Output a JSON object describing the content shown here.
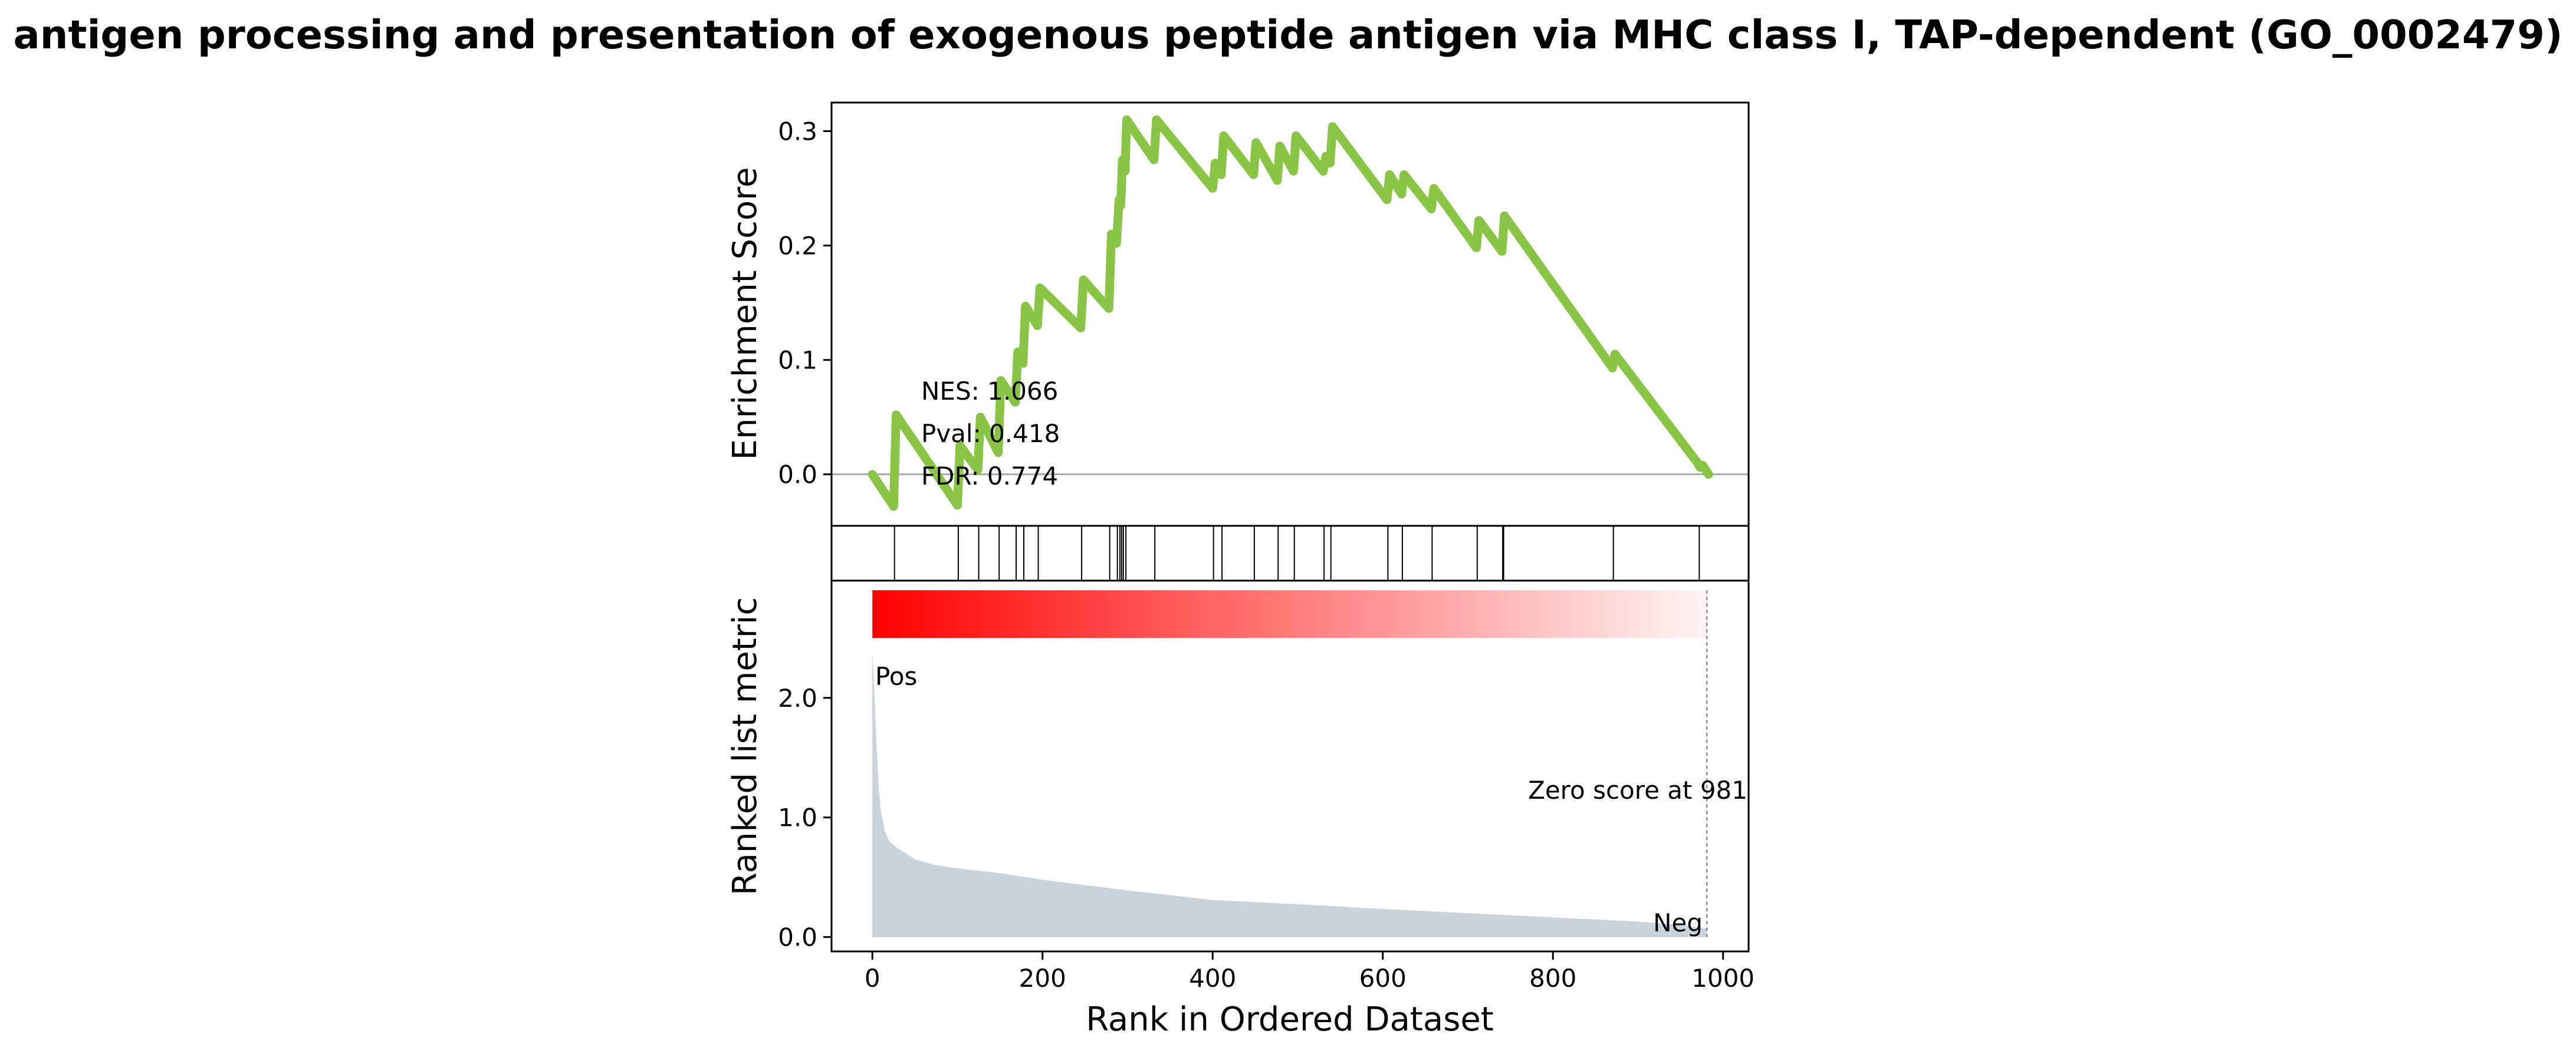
{
  "chart_data": {
    "type": "line",
    "title": "antigen processing and presentation of exogenous peptide antigen via MHC class I, TAP-dependent (GO_0002479)",
    "xlabel": "Rank in Ordered Dataset",
    "xlim": [
      -48,
      1030
    ],
    "x_ticks": [
      0,
      200,
      400,
      600,
      800,
      1000
    ],
    "x_tick_labels": [
      "0",
      "200",
      "400",
      "600",
      "800",
      "1000"
    ],
    "enrichment": {
      "ylabel": "Enrichment Score",
      "ylim": [
        -0.045,
        0.325
      ],
      "y_ticks": [
        0.0,
        0.1,
        0.2,
        0.3
      ],
      "y_tick_labels": [
        "0.0",
        "0.1",
        "0.2",
        "0.3"
      ],
      "zero_line": true,
      "line_color": "#88c544",
      "points": [
        [
          0,
          0.0
        ],
        [
          25,
          -0.028
        ],
        [
          28,
          0.052
        ],
        [
          100,
          -0.027
        ],
        [
          103,
          0.025
        ],
        [
          124,
          0.004
        ],
        [
          127,
          0.05
        ],
        [
          148,
          0.019
        ],
        [
          151,
          0.082
        ],
        [
          168,
          0.063
        ],
        [
          171,
          0.107
        ],
        [
          177,
          0.097
        ],
        [
          180,
          0.147
        ],
        [
          194,
          0.13
        ],
        [
          197,
          0.163
        ],
        [
          245,
          0.128
        ],
        [
          248,
          0.17
        ],
        [
          278,
          0.145
        ],
        [
          281,
          0.21
        ],
        [
          287,
          0.202
        ],
        [
          290,
          0.24
        ],
        [
          292,
          0.235
        ],
        [
          294,
          0.275
        ],
        [
          297,
          0.265
        ],
        [
          299,
          0.31
        ],
        [
          331,
          0.275
        ],
        [
          334,
          0.31
        ],
        [
          400,
          0.25
        ],
        [
          403,
          0.272
        ],
        [
          410,
          0.262
        ],
        [
          413,
          0.296
        ],
        [
          448,
          0.262
        ],
        [
          451,
          0.29
        ],
        [
          476,
          0.257
        ],
        [
          479,
          0.287
        ],
        [
          495,
          0.265
        ],
        [
          498,
          0.296
        ],
        [
          530,
          0.265
        ],
        [
          533,
          0.278
        ],
        [
          538,
          0.272
        ],
        [
          541,
          0.304
        ],
        [
          605,
          0.24
        ],
        [
          608,
          0.262
        ],
        [
          622,
          0.245
        ],
        [
          625,
          0.262
        ],
        [
          657,
          0.232
        ],
        [
          660,
          0.25
        ],
        [
          710,
          0.198
        ],
        [
          713,
          0.222
        ],
        [
          740,
          0.195
        ],
        [
          743,
          0.226
        ],
        [
          870,
          0.093
        ],
        [
          873,
          0.105
        ],
        [
          970,
          0.01
        ],
        [
          973,
          0.006
        ],
        [
          976,
          0.008
        ],
        [
          983,
          0.0
        ]
      ]
    },
    "hits": {
      "positions": [
        26,
        101,
        125,
        149,
        169,
        178,
        195,
        246,
        279,
        288,
        291,
        293,
        295,
        298,
        332,
        401,
        411,
        449,
        477,
        496,
        531,
        539,
        606,
        623,
        658,
        711,
        741,
        742,
        871,
        972
      ]
    },
    "ranked_metric": {
      "ylabel": "Ranked list metric",
      "ylim": [
        -0.12,
        2.98
      ],
      "y_ticks": [
        0.0,
        1.0,
        2.0
      ],
      "y_tick_labels": [
        "0.0",
        "1.0",
        "2.0"
      ],
      "fill_color": "#c9d3dc",
      "gradient_from": "#ff0000",
      "gradient_to": "#fff4f4",
      "gradient_y": [
        2.5,
        2.9
      ],
      "points": [
        [
          0,
          2.38
        ],
        [
          2,
          2.1
        ],
        [
          4,
          1.75
        ],
        [
          6,
          1.45
        ],
        [
          8,
          1.2
        ],
        [
          10,
          1.05
        ],
        [
          15,
          0.88
        ],
        [
          20,
          0.8
        ],
        [
          30,
          0.74
        ],
        [
          40,
          0.7
        ],
        [
          50,
          0.65
        ],
        [
          75,
          0.6
        ],
        [
          100,
          0.575
        ],
        [
          150,
          0.535
        ],
        [
          200,
          0.48
        ],
        [
          300,
          0.39
        ],
        [
          400,
          0.31
        ],
        [
          500,
          0.275
        ],
        [
          600,
          0.235
        ],
        [
          700,
          0.2
        ],
        [
          800,
          0.165
        ],
        [
          900,
          0.13
        ],
        [
          950,
          0.1
        ],
        [
          981,
          0.07
        ]
      ],
      "pos_label": "Pos",
      "pos_color": "#e00000",
      "neg_label": "Neg",
      "neg_color": "#0000e0",
      "zero_cross": 981,
      "zero_label": "Zero score at 981"
    },
    "stats": {
      "nes": "NES: 1.066",
      "pval": "Pval: 0.418",
      "fdr": "FDR: 0.774"
    }
  }
}
